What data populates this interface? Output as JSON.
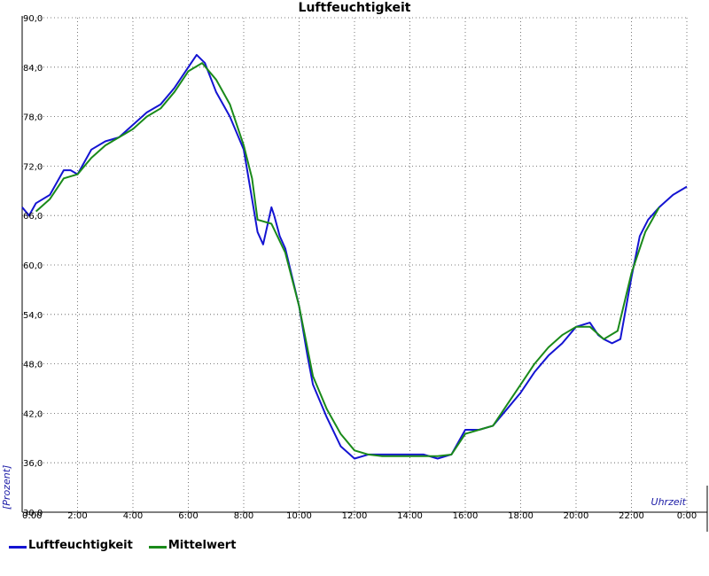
{
  "chart_data": {
    "type": "line",
    "title": "Luftfeuchtigkeit",
    "xlabel": "Uhrzeit",
    "ylabel": "[Prozent]",
    "xlim": [
      0,
      24
    ],
    "ylim": [
      30,
      90
    ],
    "x_ticks": [
      {
        "value": 0,
        "label": "0:00"
      },
      {
        "value": 2,
        "label": "2:00"
      },
      {
        "value": 4,
        "label": "4:00"
      },
      {
        "value": 6,
        "label": "6:00"
      },
      {
        "value": 8,
        "label": "8:00"
      },
      {
        "value": 10,
        "label": "10:00"
      },
      {
        "value": 12,
        "label": "12:00"
      },
      {
        "value": 14,
        "label": "14:00"
      },
      {
        "value": 16,
        "label": "16:00"
      },
      {
        "value": 18,
        "label": "18:00"
      },
      {
        "value": 20,
        "label": "20:00"
      },
      {
        "value": 22,
        "label": "22:00"
      },
      {
        "value": 24,
        "label": "0:00"
      }
    ],
    "y_ticks": [
      {
        "value": 30,
        "label": "30,0"
      },
      {
        "value": 36,
        "label": "36,0"
      },
      {
        "value": 42,
        "label": "42,0"
      },
      {
        "value": 48,
        "label": "48,0"
      },
      {
        "value": 54,
        "label": "54,0"
      },
      {
        "value": 60,
        "label": "60,0"
      },
      {
        "value": 66,
        "label": "66,0"
      },
      {
        "value": 72,
        "label": "72,0"
      },
      {
        "value": 78,
        "label": "78,0"
      },
      {
        "value": 84,
        "label": "84,0"
      },
      {
        "value": 90,
        "label": "90,0"
      }
    ],
    "grid": true,
    "legend_position": "bottom-left",
    "series": [
      {
        "name": "Luftfeuchtigkeit",
        "color": "#1414d2",
        "points": [
          [
            0.0,
            67.0
          ],
          [
            0.25,
            66.0
          ],
          [
            0.5,
            67.5
          ],
          [
            1.0,
            68.5
          ],
          [
            1.5,
            71.5
          ],
          [
            1.75,
            71.5
          ],
          [
            2.0,
            71.0
          ],
          [
            2.5,
            74.0
          ],
          [
            3.0,
            75.0
          ],
          [
            3.5,
            75.5
          ],
          [
            4.0,
            77.0
          ],
          [
            4.5,
            78.5
          ],
          [
            5.0,
            79.5
          ],
          [
            5.5,
            81.5
          ],
          [
            6.0,
            84.0
          ],
          [
            6.3,
            85.5
          ],
          [
            6.6,
            84.5
          ],
          [
            7.0,
            81.0
          ],
          [
            7.5,
            78.0
          ],
          [
            8.0,
            74.0
          ],
          [
            8.3,
            68.0
          ],
          [
            8.5,
            64.0
          ],
          [
            8.7,
            62.5
          ],
          [
            9.0,
            67.0
          ],
          [
            9.1,
            66.0
          ],
          [
            9.3,
            63.5
          ],
          [
            9.5,
            62.0
          ],
          [
            10.0,
            55.0
          ],
          [
            10.3,
            49.0
          ],
          [
            10.5,
            45.5
          ],
          [
            11.0,
            41.5
          ],
          [
            11.5,
            38.0
          ],
          [
            12.0,
            36.5
          ],
          [
            12.5,
            37.0
          ],
          [
            13.0,
            37.0
          ],
          [
            14.0,
            37.0
          ],
          [
            14.5,
            37.0
          ],
          [
            15.0,
            36.5
          ],
          [
            15.5,
            37.0
          ],
          [
            16.0,
            40.0
          ],
          [
            16.5,
            40.0
          ],
          [
            17.0,
            40.5
          ],
          [
            17.5,
            42.5
          ],
          [
            18.0,
            44.5
          ],
          [
            18.5,
            47.0
          ],
          [
            19.0,
            49.0
          ],
          [
            19.5,
            50.5
          ],
          [
            20.0,
            52.5
          ],
          [
            20.5,
            53.0
          ],
          [
            20.8,
            51.5
          ],
          [
            21.0,
            51.0
          ],
          [
            21.3,
            50.5
          ],
          [
            21.6,
            51.0
          ],
          [
            22.0,
            58.5
          ],
          [
            22.3,
            63.5
          ],
          [
            22.6,
            65.5
          ],
          [
            23.0,
            67.0
          ],
          [
            23.5,
            68.5
          ],
          [
            24.0,
            69.5
          ]
        ]
      },
      {
        "name": "Mittelwert",
        "color": "#1a8a1a",
        "points": [
          [
            0.5,
            66.5
          ],
          [
            1.0,
            68.0
          ],
          [
            1.5,
            70.5
          ],
          [
            2.0,
            71.0
          ],
          [
            2.5,
            73.0
          ],
          [
            3.0,
            74.5
          ],
          [
            3.5,
            75.5
          ],
          [
            4.0,
            76.5
          ],
          [
            4.5,
            78.0
          ],
          [
            5.0,
            79.0
          ],
          [
            5.5,
            81.0
          ],
          [
            6.0,
            83.5
          ],
          [
            6.5,
            84.5
          ],
          [
            7.0,
            82.5
          ],
          [
            7.5,
            79.5
          ],
          [
            8.0,
            74.5
          ],
          [
            8.3,
            70.5
          ],
          [
            8.5,
            65.5
          ],
          [
            9.0,
            65.0
          ],
          [
            9.5,
            61.5
          ],
          [
            10.0,
            55.0
          ],
          [
            10.5,
            46.5
          ],
          [
            11.0,
            42.5
          ],
          [
            11.5,
            39.5
          ],
          [
            12.0,
            37.5
          ],
          [
            12.5,
            37.0
          ],
          [
            13.0,
            36.8
          ],
          [
            13.5,
            36.8
          ],
          [
            14.0,
            36.8
          ],
          [
            14.5,
            36.8
          ],
          [
            15.0,
            36.8
          ],
          [
            15.5,
            37.0
          ],
          [
            16.0,
            39.5
          ],
          [
            16.5,
            40.0
          ],
          [
            17.0,
            40.5
          ],
          [
            17.5,
            43.0
          ],
          [
            18.0,
            45.5
          ],
          [
            18.5,
            48.0
          ],
          [
            19.0,
            50.0
          ],
          [
            19.5,
            51.5
          ],
          [
            20.0,
            52.5
          ],
          [
            20.5,
            52.5
          ],
          [
            21.0,
            51.0
          ],
          [
            21.5,
            52.0
          ],
          [
            22.0,
            59.0
          ],
          [
            22.5,
            64.0
          ],
          [
            23.0,
            67.0
          ]
        ]
      }
    ]
  }
}
